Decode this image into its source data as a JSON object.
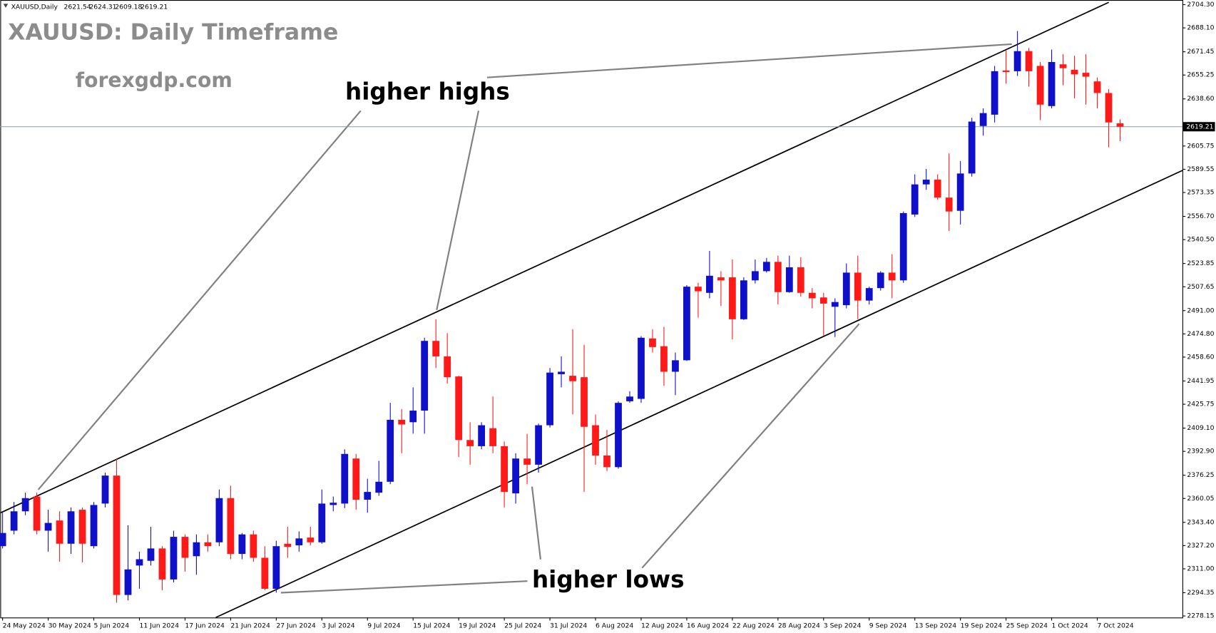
{
  "chart_data": {
    "type": "candlestick",
    "title": "XAUUSD: Daily Timeframe",
    "subtitle": "forexgdp.com",
    "symbol": "XAUUSD,Daily",
    "annotations": [
      "higher highs",
      "higher lows"
    ],
    "up_color": "#1010c8",
    "down_color": "#ff1a1a",
    "grid": false,
    "categories": [
      "24 May 2024",
      null,
      null,
      null,
      "30 May 2024",
      null,
      null,
      null,
      "5 Jun 2024",
      null,
      null,
      null,
      "11 Jun 2024",
      null,
      null,
      null,
      "17 Jun 2024",
      null,
      null,
      null,
      "21 Jun 2024",
      null,
      null,
      null,
      "27 Jun 2024",
      null,
      null,
      null,
      "3 Jul 2024",
      null,
      null,
      null,
      "9 Jul 2024",
      null,
      null,
      null,
      "15 Jul 2024",
      null,
      null,
      null,
      "19 Jul 2024",
      null,
      null,
      null,
      "25 Jul 2024",
      null,
      null,
      null,
      "31 Jul 2024",
      null,
      null,
      null,
      "6 Aug 2024",
      null,
      null,
      null,
      "12 Aug 2024",
      null,
      null,
      null,
      "16 Aug 2024",
      null,
      null,
      null,
      "22 Aug 2024",
      null,
      null,
      null,
      "28 Aug 2024",
      null,
      null,
      null,
      "3 Sep 2024",
      null,
      null,
      null,
      "9 Sep 2024",
      null,
      null,
      null,
      "13 Sep 2024",
      null,
      null,
      null,
      "19 Sep 2024",
      null,
      null,
      null,
      "25 Sep 2024",
      null,
      null,
      null,
      "1 Oct 2024",
      null,
      null,
      null,
      "7 Oct 2024",
      null,
      null
    ],
    "open": [
      2326.8,
      2337.6,
      2351.1,
      2361.4,
      2337.6,
      2344.7,
      2328.5,
      2352.2,
      2326.8,
      2356.5,
      2376.0,
      2292.8,
      2313.3,
      2316.6,
      2325.2,
      2303.6,
      2333.3,
      2319.8,
      2329.5,
      2329.5,
      2360.3,
      2321.4,
      2335.0,
      2318.7,
      2297.1,
      2328.5,
      2327.4,
      2332.8,
      2329.5,
      2355.5,
      2356.5,
      2387.9,
      2359.2,
      2364.1,
      2371.7,
      2414.9,
      2413.2,
      2421.3,
      2469.9,
      2459.1,
      2445.1,
      2400.8,
      2396.5,
      2409.0,
      2396.5,
      2363.6,
      2387.9,
      2383.6,
      2411.1,
      2446.7,
      2445.6,
      2444.6,
      2411.1,
      2390.0,
      2381.9,
      2427.8,
      2429.5,
      2471.6,
      2466.2,
      2448.4,
      2456.4,
      2507.7,
      2503.4,
      2514.2,
      2514.2,
      2485.0,
      2512.1,
      2518.5,
      2525.0,
      2503.9,
      2521.2,
      2503.4,
      2500.2,
      2493.7,
      2494.8,
      2517.5,
      2498.0,
      2506.7,
      2517.5,
      2512.1,
      2558.0,
      2579.0,
      2582.3,
      2569.8,
      2560.6,
      2586.6,
      2619.7,
      2627.6,
      2658.4,
      2657.9,
      2671.9,
      2661.6,
      2633.6,
      2662.7,
      2658.9,
      2656.8,
      2650.8,
      2642.7,
      2621.54
    ],
    "high": [
      2350.1,
      2357.6,
      2364.1,
      2364.1,
      2352.2,
      2351.1,
      2353.8,
      2353.8,
      2357.6,
      2378.1,
      2387.9,
      2341.4,
      2323.0,
      2340.3,
      2326.8,
      2337.6,
      2335.0,
      2335.0,
      2335.0,
      2366.3,
      2369.0,
      2336.0,
      2337.6,
      2326.8,
      2330.6,
      2340.3,
      2337.1,
      2340.3,
      2366.3,
      2361.4,
      2394.3,
      2391.1,
      2373.8,
      2386.3,
      2426.7,
      2422.4,
      2437.5,
      2472.1,
      2485.0,
      2475.3,
      2445.6,
      2413.2,
      2413.2,
      2431.1,
      2399.7,
      2391.6,
      2405.1,
      2412.2,
      2451.0,
      2459.1,
      2478.0,
      2467.2,
      2418.6,
      2407.8,
      2427.8,
      2434.8,
      2473.2,
      2478.0,
      2479.7,
      2461.8,
      2508.8,
      2510.4,
      2532.6,
      2518.5,
      2526.6,
      2514.2,
      2526.6,
      2527.7,
      2529.3,
      2529.3,
      2528.2,
      2506.7,
      2503.4,
      2499.6,
      2523.9,
      2529.3,
      2507.7,
      2518.5,
      2530.4,
      2560.1,
      2586.0,
      2589.8,
      2586.0,
      2600.6,
      2595.2,
      2625.5,
      2632.0,
      2661.6,
      2672.4,
      2685.9,
      2674.1,
      2664.3,
      2673.0,
      2669.7,
      2668.7,
      2669.7,
      2653.5,
      2645.4,
      2624.31
    ],
    "low": [
      2325.2,
      2335.0,
      2348.4,
      2335.0,
      2323.0,
      2316.0,
      2321.4,
      2315.5,
      2325.2,
      2353.8,
      2287.4,
      2289.0,
      2297.1,
      2313.3,
      2296.1,
      2301.5,
      2309.0,
      2306.9,
      2323.0,
      2326.8,
      2317.7,
      2317.7,
      2316.0,
      2296.1,
      2294.4,
      2318.7,
      2323.0,
      2327.4,
      2328.5,
      2351.1,
      2353.3,
      2352.2,
      2350.1,
      2361.9,
      2370.0,
      2391.6,
      2405.2,
      2405.2,
      2451.0,
      2440.2,
      2388.9,
      2383.6,
      2394.3,
      2391.6,
      2353.8,
      2356.5,
      2370.0,
      2378.1,
      2409.5,
      2437.5,
      2418.6,
      2364.6,
      2383.6,
      2379.2,
      2380.8,
      2426.7,
      2426.7,
      2461.8,
      2438.6,
      2432.1,
      2455.9,
      2486.1,
      2499.6,
      2494.2,
      2471.0,
      2484.5,
      2509.9,
      2517.5,
      2495.3,
      2503.4,
      2500.7,
      2492.6,
      2473.7,
      2472.6,
      2492.6,
      2485.0,
      2495.3,
      2505.0,
      2499.6,
      2510.4,
      2556.3,
      2575.2,
      2568.2,
      2546.6,
      2551.0,
      2584.4,
      2613.0,
      2622.2,
      2649.2,
      2654.6,
      2647.1,
      2623.8,
      2632.0,
      2648.1,
      2639.0,
      2634.6,
      2632.0,
      2604.9,
      2609.18
    ],
    "close": [
      2336.0,
      2351.1,
      2360.3,
      2337.6,
      2343.0,
      2328.5,
      2351.1,
      2328.5,
      2355.5,
      2376.0,
      2292.8,
      2310.6,
      2317.7,
      2325.2,
      2303.6,
      2333.3,
      2318.7,
      2329.5,
      2326.8,
      2360.3,
      2321.4,
      2335.0,
      2318.7,
      2297.1,
      2326.8,
      2326.3,
      2332.2,
      2329.5,
      2356.5,
      2357.1,
      2391.1,
      2359.2,
      2364.6,
      2371.7,
      2414.9,
      2411.6,
      2421.3,
      2469.9,
      2459.1,
      2444.6,
      2400.8,
      2396.5,
      2411.1,
      2396.5,
      2364.6,
      2387.9,
      2383.6,
      2411.1,
      2447.8,
      2448.4,
      2441.8,
      2410.0,
      2390.0,
      2381.9,
      2426.7,
      2431.1,
      2472.1,
      2465.6,
      2448.4,
      2456.4,
      2507.7,
      2504.5,
      2515.3,
      2512.1,
      2485.0,
      2512.1,
      2518.5,
      2525.0,
      2503.9,
      2521.2,
      2503.4,
      2499.6,
      2495.9,
      2497.0,
      2517.5,
      2498.0,
      2506.7,
      2517.5,
      2512.1,
      2559.0,
      2579.0,
      2582.3,
      2569.8,
      2560.1,
      2586.6,
      2622.8,
      2628.7,
      2657.9,
      2657.3,
      2671.9,
      2657.9,
      2634.6,
      2664.3,
      2660.0,
      2655.7,
      2654.1,
      2642.7,
      2622.2,
      2619.21
    ],
    "ylim": [
      2278.15,
      2704.3
    ],
    "yticks": [
      {
        "value": 2704.3,
        "label": "2704.30"
      },
      {
        "value": 2688.1,
        "label": "2688.10"
      },
      {
        "value": 2671.45,
        "label": "2671.45"
      },
      {
        "value": 2655.25,
        "label": "2655.25"
      },
      {
        "value": 2638.6,
        "label": "2638.60"
      },
      {
        "value": 2605.75,
        "label": "2605.75"
      },
      {
        "value": 2589.55,
        "label": "2589.55"
      },
      {
        "value": 2573.35,
        "label": "2573.35"
      },
      {
        "value": 2556.7,
        "label": "2556.70"
      },
      {
        "value": 2540.5,
        "label": "2540.50"
      },
      {
        "value": 2523.85,
        "label": "2523.85"
      },
      {
        "value": 2507.65,
        "label": "2507.65"
      },
      {
        "value": 2491,
        "label": "2491.00"
      },
      {
        "value": 2474.8,
        "label": "2474.80"
      },
      {
        "value": 2458.6,
        "label": "2458.60"
      },
      {
        "value": 2441.95,
        "label": "2441.95"
      },
      {
        "value": 2425.75,
        "label": "2425.75"
      },
      {
        "value": 2409.1,
        "label": "2409.10"
      },
      {
        "value": 2392.9,
        "label": "2392.90"
      },
      {
        "value": 2376.25,
        "label": "2376.25"
      },
      {
        "value": 2360.05,
        "label": "2360.05"
      },
      {
        "value": 2343.4,
        "label": "2343.40"
      },
      {
        "value": 2327.2,
        "label": "2327.20"
      },
      {
        "value": 2311,
        "label": "2311.00"
      },
      {
        "value": 2294.35,
        "label": "2294.35"
      },
      {
        "value": 2278.15,
        "label": "2278.15"
      }
    ]
  }
}
